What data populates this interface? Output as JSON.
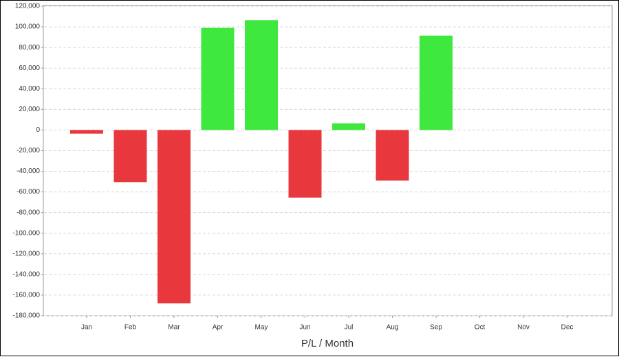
{
  "chart_data": {
    "type": "bar",
    "x_label": "P/L / Month",
    "categories": [
      "Jan",
      "Feb",
      "Mar",
      "Apr",
      "May",
      "Jun",
      "Jul",
      "Aug",
      "Sep",
      "Oct",
      "Nov",
      "Dec"
    ],
    "values": [
      -3500,
      -50500,
      -168000,
      99000,
      106500,
      -65500,
      6500,
      -49000,
      91500,
      null,
      null,
      null
    ],
    "positive_color": "#3fe83f",
    "negative_color": "#e8383d",
    "ylim": [
      -180000,
      120000
    ],
    "yticks": [
      {
        "value": -180000,
        "label": "-180,000"
      },
      {
        "value": -160000,
        "label": "-160,000"
      },
      {
        "value": -140000,
        "label": "-140,000"
      },
      {
        "value": -120000,
        "label": "-120,000"
      },
      {
        "value": -100000,
        "label": "-100,000"
      },
      {
        "value": -80000,
        "label": "-80,000"
      },
      {
        "value": -60000,
        "label": "-60,000"
      },
      {
        "value": -40000,
        "label": "-40,000"
      },
      {
        "value": -20000,
        "label": "-20,000"
      },
      0,
      {
        "value": 20000,
        "label": "20,000"
      },
      {
        "value": 40000,
        "label": "40,000"
      },
      {
        "value": 60000,
        "label": "60,000"
      },
      {
        "value": 80000,
        "label": "80,000"
      },
      {
        "value": 100000,
        "label": "100,000"
      },
      {
        "value": 120000,
        "label": "120,000"
      }
    ],
    "grid": true
  }
}
